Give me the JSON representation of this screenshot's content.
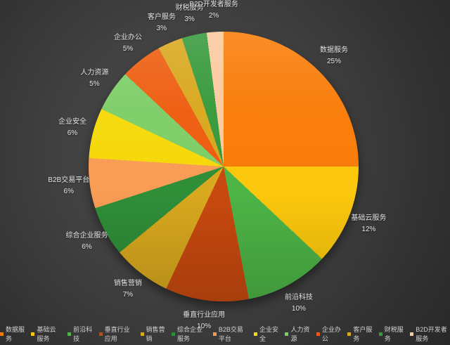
{
  "chart_data": {
    "type": "pie",
    "title": "",
    "unit": "%",
    "start_angle_deg": 0,
    "direction": "clockwise",
    "legend_position": "bottom",
    "slices": [
      {
        "label": "数据服务",
        "value": 25,
        "color": "#F97C08"
      },
      {
        "label": "基础云服务",
        "value": 12,
        "color": "#FCC80D"
      },
      {
        "label": "前沿科技",
        "value": 10,
        "color": "#4DB446"
      },
      {
        "label": "垂直行业应用",
        "value": 10,
        "color": "#C8490F"
      },
      {
        "label": "销售营销",
        "value": 7,
        "color": "#D8A81E"
      },
      {
        "label": "综合企业服务",
        "value": 6,
        "color": "#2F8E38"
      },
      {
        "label": "B2B交易平台",
        "value": 6,
        "color": "#F99C55"
      },
      {
        "label": "企业安全",
        "value": 6,
        "color": "#F5D90B"
      },
      {
        "label": "人力资源",
        "value": 5,
        "color": "#7ECE68"
      },
      {
        "label": "企业办公",
        "value": 5,
        "color": "#EE5D10"
      },
      {
        "label": "客户服务",
        "value": 3,
        "color": "#D8A81E"
      },
      {
        "label": "财税服务",
        "value": 3,
        "color": "#37993C"
      },
      {
        "label": "B2D开发者服务",
        "value": 2,
        "color": "#FBCA9E"
      }
    ]
  },
  "colors": {
    "background_center": "#4d4d4d",
    "background_edge": "#262626",
    "label_text": "#e4e4e4",
    "legend_text": "#d2d2d2"
  }
}
